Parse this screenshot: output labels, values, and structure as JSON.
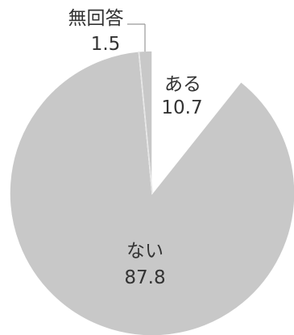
{
  "chart_data": {
    "type": "pie",
    "slices": [
      {
        "name": "ある",
        "value": 10.7,
        "value_label": "10.7",
        "color": "#ffffff"
      },
      {
        "name": "ない",
        "value": 87.8,
        "value_label": "87.8",
        "color": "#c8c8c8"
      },
      {
        "name": "無回答",
        "value": 1.5,
        "value_label": "1.5",
        "color": "#c8c8c8"
      }
    ],
    "legend": "none",
    "label_style": "inside labels, outside callout for smallest slice"
  }
}
